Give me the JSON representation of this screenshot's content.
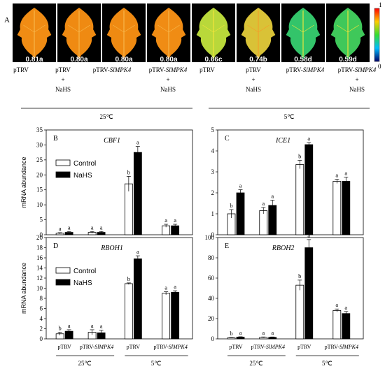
{
  "panel_a": {
    "panel_letter": "A",
    "colorbar": {
      "max_label": "1",
      "min_label": "0"
    },
    "leaves": [
      {
        "value_label": "0.81a",
        "fill": "#f08c14",
        "vein": "#f7b64a"
      },
      {
        "value_label": "0.80a",
        "fill": "#ef8a12",
        "vein": "#f7b64a"
      },
      {
        "value_label": "0.80a",
        "fill": "#ef8a12",
        "vein": "#f7b64a"
      },
      {
        "value_label": "0.80a",
        "fill": "#f08c14",
        "vein": "#f7b64a"
      },
      {
        "value_label": "0.66c",
        "fill": "#b9d83a",
        "vein": "#f2e43a"
      },
      {
        "value_label": "0.74b",
        "fill": "#d9c237",
        "vein": "#f3a02a"
      },
      {
        "value_label": "0.58d",
        "fill": "#33c46a",
        "vein": "#e9e640"
      },
      {
        "value_label": "0.59d",
        "fill": "#3fc85a",
        "vein": "#ece23a"
      }
    ],
    "treatments": [
      {
        "line1": "pTRV",
        "line2": "",
        "line3": "",
        "italic": ""
      },
      {
        "line1": "pTRV",
        "line2": "+",
        "line3": "NaHS",
        "italic": ""
      },
      {
        "line1": "pTRV-",
        "line2": "",
        "line3": "",
        "italic": "SlMPK4"
      },
      {
        "line1": "pTRV-",
        "line2": "+",
        "line3": "NaHS",
        "italic": "SlMPK4"
      },
      {
        "line1": "pTRV",
        "line2": "",
        "line3": "",
        "italic": ""
      },
      {
        "line1": "pTRV",
        "line2": "+",
        "line3": "NaHS",
        "italic": ""
      },
      {
        "line1": "pTRV-",
        "line2": "",
        "line3": "",
        "italic": "SlMPK4"
      },
      {
        "line1": "pTRV-",
        "line2": "+",
        "line3": "NaHS",
        "italic": "SlMPK4"
      }
    ],
    "temp_groups": [
      "25℃",
      "5℃"
    ]
  },
  "bottom_labels": {
    "group1": "pTRV",
    "group2_prefix": "pTRV-",
    "group2_italic": "SlMPK4",
    "temps": [
      "25℃",
      "5℃"
    ]
  },
  "legend": {
    "control": "Control",
    "nahs": "NaHS"
  },
  "colors": {
    "control": "#ffffff",
    "nahs": "#000000"
  },
  "chart_data": [
    {
      "type": "bar",
      "panel": "B",
      "title": "CBF1",
      "ylabel": "mRNA abundance",
      "ylim": [
        0,
        35
      ],
      "yticks": [
        0,
        5,
        10,
        15,
        20,
        25,
        30,
        35
      ],
      "categories": [
        "pTRV 25℃",
        "pTRV-SlMPK4 25℃",
        "pTRV 5℃",
        "pTRV-SlMPK4 5℃"
      ],
      "series": [
        {
          "name": "Control",
          "values": [
            0.5,
            0.8,
            17,
            3
          ],
          "errors": [
            0.2,
            0.3,
            2.5,
            0.5
          ],
          "letters": [
            "a",
            "a",
            "b",
            "a"
          ]
        },
        {
          "name": "NaHS",
          "values": [
            0.8,
            0.8,
            27.5,
            3
          ],
          "errors": [
            0.3,
            0.3,
            2.0,
            0.5
          ],
          "letters": [
            "a",
            "a",
            "a",
            "a"
          ]
        }
      ],
      "legend": true
    },
    {
      "type": "bar",
      "panel": "C",
      "title": "ICE1",
      "ylabel": "",
      "ylim": [
        0,
        5
      ],
      "yticks": [
        0,
        1,
        2,
        3,
        4,
        5
      ],
      "categories": [
        "pTRV 25℃",
        "pTRV-SlMPK4 25℃",
        "pTRV 5℃",
        "pTRV-SlMPK4 5℃"
      ],
      "series": [
        {
          "name": "Control",
          "values": [
            1.0,
            1.15,
            3.35,
            2.55
          ],
          "errors": [
            0.2,
            0.15,
            0.2,
            0.1
          ],
          "letters": [
            "b",
            "a",
            "b",
            "a"
          ]
        },
        {
          "name": "NaHS",
          "values": [
            2.0,
            1.4,
            4.3,
            2.55
          ],
          "errors": [
            0.15,
            0.25,
            0.1,
            0.2
          ],
          "letters": [
            "a",
            "a",
            "a",
            "a"
          ]
        }
      ],
      "legend": false
    },
    {
      "type": "bar",
      "panel": "D",
      "title": "RBOH1",
      "ylabel": "mRNA abundance",
      "ylim": [
        0,
        20
      ],
      "yticks": [
        0,
        2,
        4,
        6,
        8,
        10,
        12,
        14,
        16,
        18,
        20
      ],
      "categories": [
        "pTRV 25℃",
        "pTRV-SlMPK4 25℃",
        "pTRV 5℃",
        "pTRV-SlMPK4 5℃"
      ],
      "series": [
        {
          "name": "Control",
          "values": [
            1.0,
            1.3,
            10.9,
            9.0
          ],
          "errors": [
            0.3,
            0.5,
            0.15,
            0.3
          ],
          "letters": [
            "b",
            "a",
            "b",
            "a"
          ]
        },
        {
          "name": "NaHS",
          "values": [
            1.5,
            1.2,
            15.8,
            9.2
          ],
          "errors": [
            0.3,
            0.5,
            0.6,
            0.3
          ],
          "letters": [
            "a",
            "a",
            "a",
            "a"
          ]
        }
      ],
      "legend": true
    },
    {
      "type": "bar",
      "panel": "E",
      "title": "RBOH2",
      "ylabel": "",
      "ylim": [
        0,
        100
      ],
      "yticks": [
        0,
        20,
        40,
        60,
        80,
        100
      ],
      "categories": [
        "pTRV 25℃",
        "pTRV-SlMPK4 25℃",
        "pTRV 5℃",
        "pTRV-SlMPK4 5℃"
      ],
      "series": [
        {
          "name": "Control",
          "values": [
            1.0,
            1.5,
            53,
            28
          ],
          "errors": [
            0.3,
            0.4,
            5,
            1.5
          ],
          "letters": [
            "b",
            "a",
            "b",
            "a"
          ]
        },
        {
          "name": "NaHS",
          "values": [
            1.8,
            1.5,
            90,
            25
          ],
          "errors": [
            0.3,
            0.4,
            8,
            2
          ],
          "letters": [
            "a",
            "a",
            "a",
            "a"
          ]
        }
      ],
      "legend": false
    }
  ]
}
